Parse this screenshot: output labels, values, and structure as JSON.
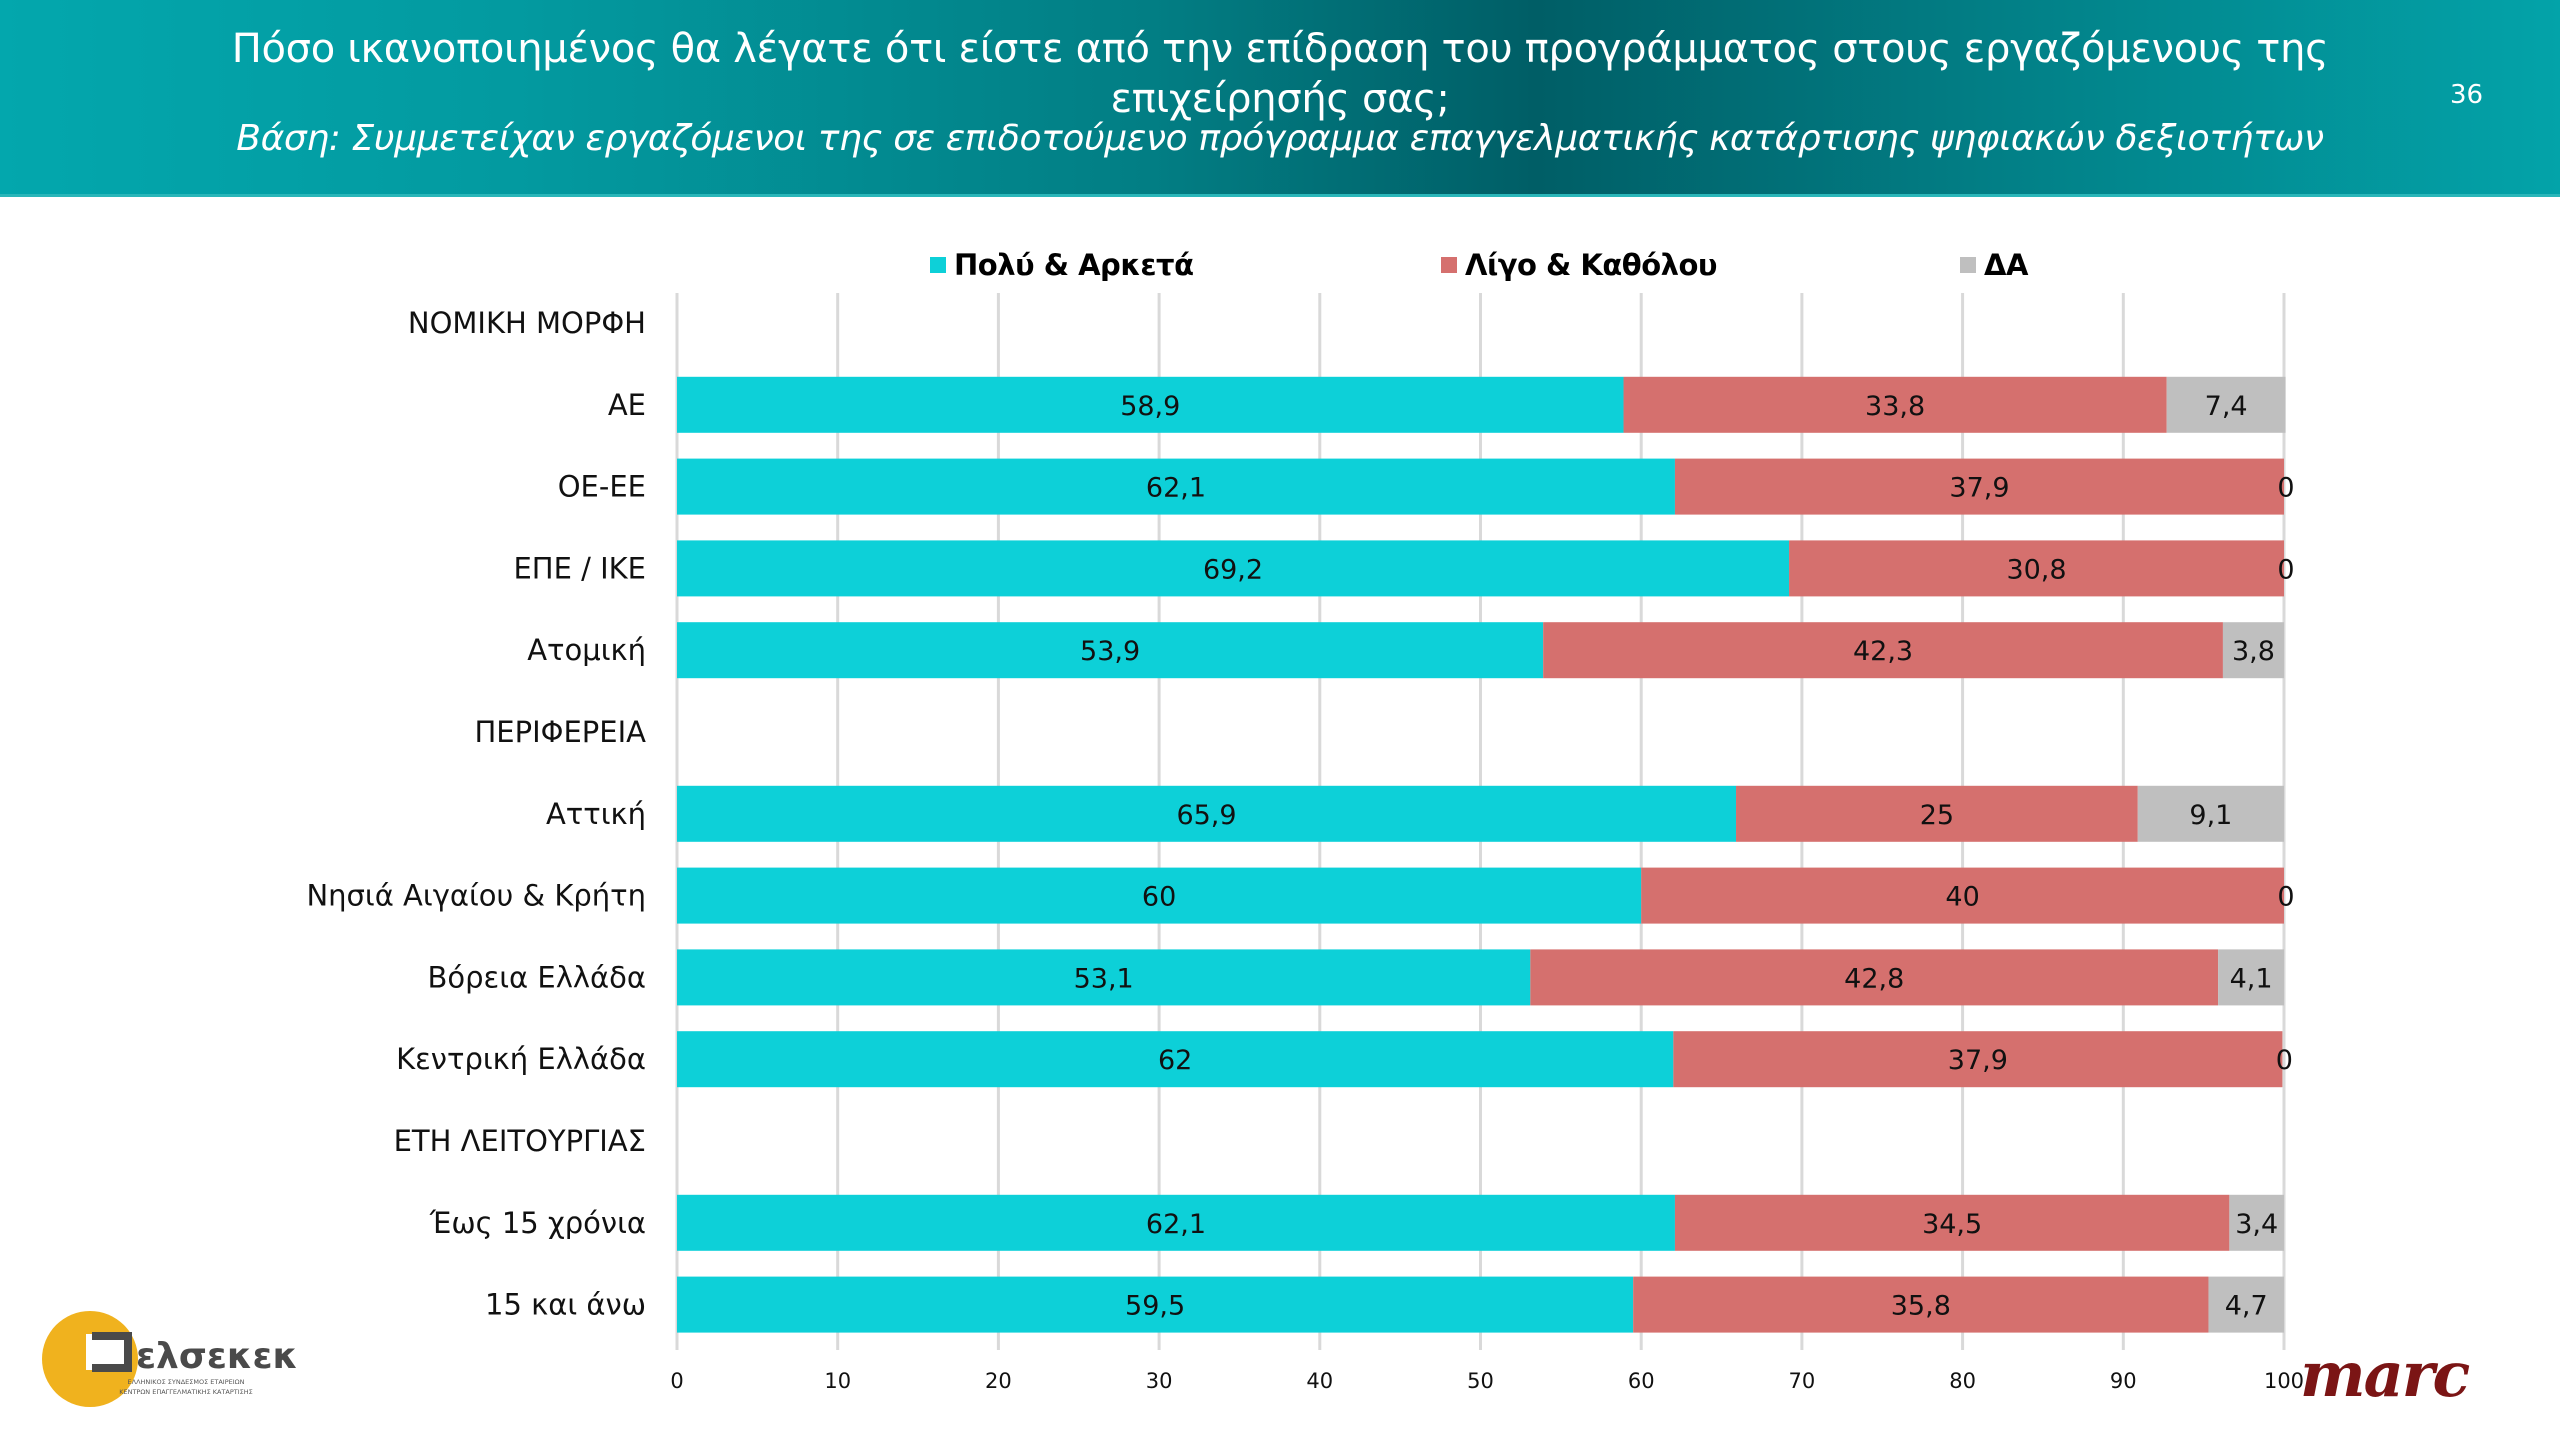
{
  "header": {
    "title": "Πόσο ικανοποιημένος θα λέγατε ότι είστε από την επίδραση του προγράμματος στους εργαζόμενους της επιχείρησής σας;",
    "subtitle": "Βάση: Συμμετείχαν εργαζόμενοι της σε επιδοτούμενο πρόγραμμα επαγγελματικής κατάρτισης ψηφιακών δεξιοτήτων",
    "page_number": "36"
  },
  "colors": {
    "series_1": "#0dd0d8",
    "series_2": "#d5706e",
    "series_3": "#bfbfbf",
    "gridline": "#d9d9d9"
  },
  "chart_data": {
    "type": "bar",
    "orientation": "horizontal",
    "stacked": true,
    "title": "Πόσο ικανοποιημένος θα λέγατε ότι είστε από την επίδραση του προγράμματος στους εργαζόμενους της επιχείρησής σας;",
    "xlabel": "",
    "ylabel": "",
    "xlim": [
      0,
      100
    ],
    "xticks": [
      "0",
      "10",
      "20",
      "30",
      "40",
      "50",
      "60",
      "70",
      "80",
      "90",
      "100"
    ],
    "grid": true,
    "legend_position": "top",
    "categories": [
      "ΝΟΜΙΚΗ ΜΟΡΦΗ",
      "ΑΕ",
      "ΟΕ-ΕΕ",
      "ΕΠΕ / ΙΚΕ",
      "Ατομική",
      "ΠΕΡΙΦΕΡΕΙΑ",
      "Αττική",
      "Νησιά Αιγαίου & Κρήτη",
      "Βόρεια Ελλάδα",
      "Κεντρική Ελλάδα",
      "ΕΤΗ ΛΕΙΤΟΥΡΓΙΑΣ",
      "Έως 15 χρόνια",
      "15 και άνω"
    ],
    "series": [
      {
        "name": "Πολύ & Αρκετά",
        "values": [
          null,
          58.9,
          62.1,
          69.2,
          53.9,
          null,
          65.9,
          60,
          53.1,
          62,
          null,
          62.1,
          59.5
        ],
        "labels": [
          null,
          "58,9",
          "62,1",
          "69,2",
          "53,9",
          null,
          "65,9",
          "60",
          "53,1",
          "62",
          null,
          "62,1",
          "59,5"
        ]
      },
      {
        "name": "Λίγο & Καθόλου",
        "values": [
          null,
          33.8,
          37.9,
          30.8,
          42.3,
          null,
          25,
          40,
          42.8,
          37.9,
          null,
          34.5,
          35.8
        ],
        "labels": [
          null,
          "33,8",
          "37,9",
          "30,8",
          "42,3",
          null,
          "25",
          "40",
          "42,8",
          "37,9",
          null,
          "34,5",
          "35,8"
        ]
      },
      {
        "name": "ΔΑ",
        "values": [
          null,
          7.4,
          0,
          0,
          3.8,
          null,
          9.1,
          0,
          4.1,
          0,
          null,
          3.4,
          4.7
        ],
        "labels": [
          null,
          "7,4",
          "0",
          "0",
          "3,8",
          null,
          "9,1",
          "0",
          "4,1",
          "0",
          null,
          "3,4",
          "4,7"
        ]
      }
    ]
  },
  "logos": {
    "left_name": "ελσεκεκ",
    "left_line1": "ΕΛΛΗΝΙΚΟΣ ΣΥΝΔΕΣΜΟΣ ΕΤΑΙΡΕΙΩΝ",
    "left_line2": "ΚΕΝΤΡΩΝ ΕΠΑΓΓΕΛΜΑΤΙΚΗΣ ΚΑΤΑΡΤΙΣΗΣ",
    "right_name": "marc"
  }
}
